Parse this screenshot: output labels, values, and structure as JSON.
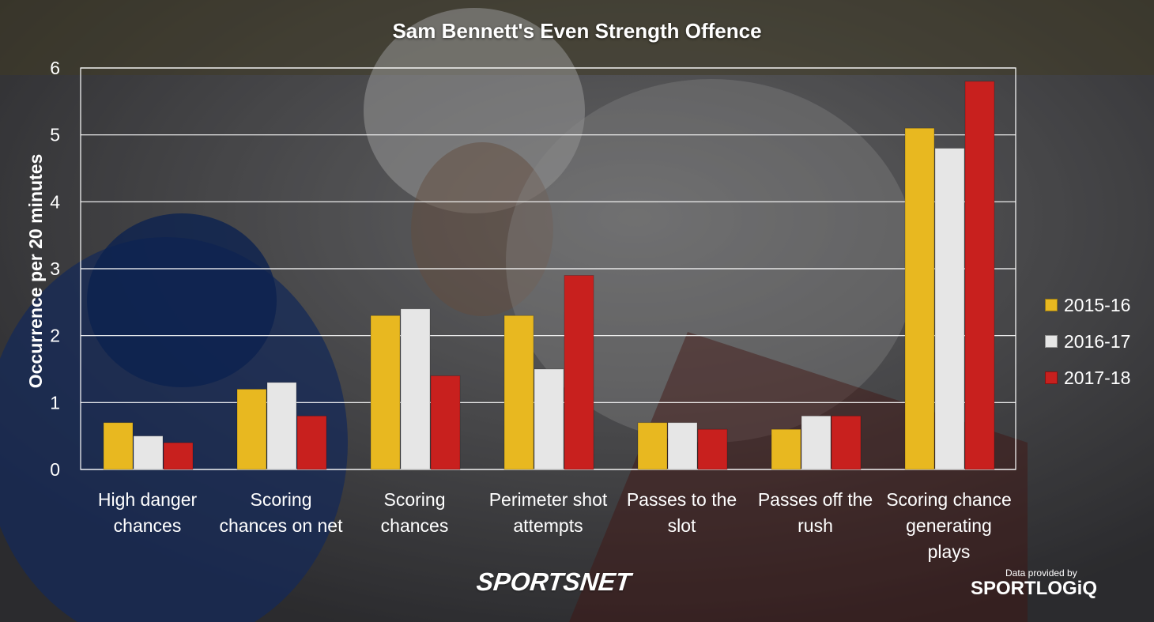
{
  "chart_data": {
    "type": "bar",
    "title": "Sam Bennett's Even Strength Offence",
    "ylabel": "Occurrence per 20 minutes",
    "ylim": [
      0,
      6
    ],
    "yticks": [
      0,
      1,
      2,
      3,
      4,
      5,
      6
    ],
    "grid": true,
    "legend_position": "right",
    "categories": [
      [
        "High danger",
        "chances"
      ],
      [
        "Scoring",
        "chances on net"
      ],
      [
        "Scoring",
        "chances"
      ],
      [
        "Perimeter shot",
        "attempts"
      ],
      [
        "Passes to the",
        "slot"
      ],
      [
        "Passes off the",
        "rush"
      ],
      [
        "Scoring chance",
        "generating",
        "plays"
      ]
    ],
    "series": [
      {
        "name": "2015-16",
        "color": "#e8b820",
        "values": [
          0.7,
          1.2,
          2.3,
          2.3,
          0.7,
          0.6,
          5.1
        ]
      },
      {
        "name": "2016-17",
        "color": "#e6e6e6",
        "values": [
          0.5,
          1.3,
          2.4,
          1.5,
          0.7,
          0.8,
          4.8
        ]
      },
      {
        "name": "2017-18",
        "color": "#c8201e",
        "values": [
          0.4,
          0.8,
          1.4,
          2.9,
          0.6,
          0.8,
          5.8
        ]
      }
    ]
  },
  "branding": {
    "sportsnet": "SPORTSNET",
    "credit_prefix": "Data provided by",
    "sportlogiq": "SPORTLOGiQ"
  }
}
